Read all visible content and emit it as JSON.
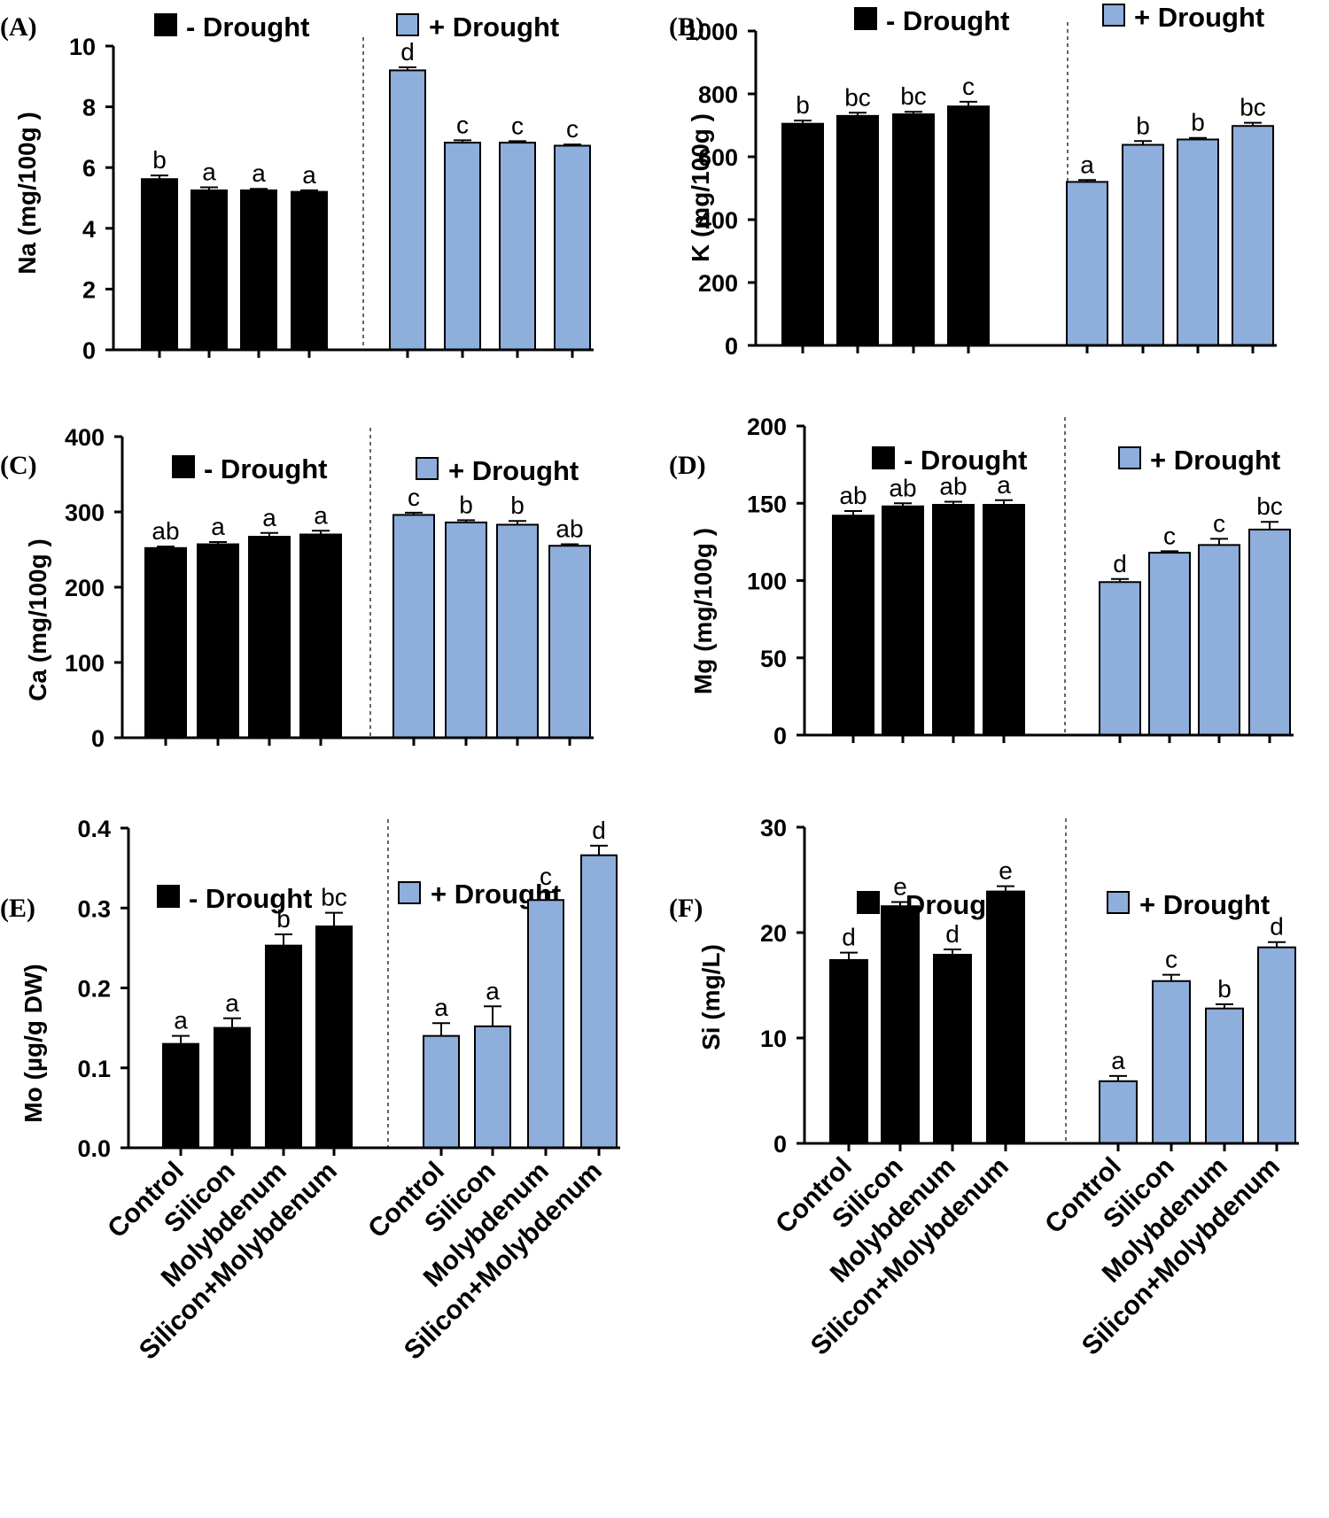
{
  "figure": {
    "colors": {
      "no_drought": "#000000",
      "drought": "#8eaedb",
      "outline": "#000000"
    },
    "categories": [
      "Control",
      "Silicon",
      "Molybdenum",
      "Silicon+Molybdenum"
    ],
    "legend": {
      "no_drought": "- Drought",
      "drought": "+ Drought"
    }
  },
  "chart_data": [
    {
      "panel": "(A)",
      "type": "bar",
      "ylabel": "Na (mg/100g )",
      "ylim": [
        0,
        10
      ],
      "yticks": [
        "0",
        "2",
        "4",
        "6",
        "8",
        "10"
      ],
      "categories": [
        "Control",
        "Silicon",
        "Molybdenum",
        "Silicon+Molybdenum"
      ],
      "series": [
        {
          "name": "- Drought",
          "values": [
            5.62,
            5.25,
            5.25,
            5.2
          ],
          "errors": [
            0.12,
            0.1,
            0.05,
            0.05
          ],
          "letters": [
            "b",
            "a",
            "a",
            "a"
          ]
        },
        {
          "name": "+ Drought",
          "values": [
            9.2,
            6.82,
            6.82,
            6.72
          ],
          "errors": [
            0.1,
            0.08,
            0.05,
            0.04
          ],
          "letters": [
            "d",
            "c",
            "c",
            "c"
          ]
        }
      ]
    },
    {
      "panel": "(B)",
      "type": "bar",
      "ylabel": "K (mg/100g )",
      "ylim": [
        0,
        1000
      ],
      "yticks": [
        "0",
        "200",
        "400",
        "600",
        "800",
        "1000"
      ],
      "categories": [
        "Control",
        "Silicon",
        "Molybdenum",
        "Silicon+Molybdenum"
      ],
      "series": [
        {
          "name": "- Drought",
          "values": [
            705,
            730,
            735,
            760
          ],
          "errors": [
            10,
            10,
            8,
            15
          ],
          "letters": [
            "b",
            "bc",
            "bc",
            "c"
          ]
        },
        {
          "name": "+ Drought",
          "values": [
            520,
            638,
            655,
            698
          ],
          "errors": [
            6,
            12,
            5,
            10
          ],
          "letters": [
            "a",
            "b",
            "b",
            "bc"
          ]
        }
      ]
    },
    {
      "panel": "(C)",
      "type": "bar",
      "ylabel": "Ca (mg/100g )",
      "ylim": [
        0,
        400
      ],
      "yticks": [
        "0",
        "100",
        "200",
        "300",
        "400"
      ],
      "categories": [
        "Control",
        "Silicon",
        "Molybdenum",
        "Silicon+Molybdenum"
      ],
      "series": [
        {
          "name": "- Drought",
          "values": [
            252,
            257,
            267,
            270
          ],
          "errors": [
            2,
            3,
            5,
            5
          ],
          "letters": [
            "ab",
            "a",
            "a",
            "a"
          ]
        },
        {
          "name": "+ Drought",
          "values": [
            296,
            286,
            283,
            255
          ],
          "errors": [
            3,
            3,
            5,
            2
          ],
          "letters": [
            "c",
            "b",
            "b",
            "ab"
          ]
        }
      ]
    },
    {
      "panel": "(D)",
      "type": "bar",
      "ylabel": "Mg (mg/100g )",
      "ylim": [
        0,
        200
      ],
      "yticks": [
        "0",
        "50",
        "100",
        "150",
        "200"
      ],
      "categories": [
        "Control",
        "Silicon",
        "Molybdenum",
        "Silicon+Molybdenum"
      ],
      "series": [
        {
          "name": "- Drought",
          "values": [
            142,
            148,
            149,
            149
          ],
          "errors": [
            3,
            2,
            2,
            3
          ],
          "letters": [
            "ab",
            "ab",
            "ab",
            "a"
          ]
        },
        {
          "name": "+ Drought",
          "values": [
            99,
            118,
            123,
            133
          ],
          "errors": [
            2,
            1,
            4,
            5
          ],
          "letters": [
            "d",
            "c",
            "c",
            "bc"
          ]
        }
      ]
    },
    {
      "panel": "(E)",
      "type": "bar",
      "ylabel": "Mo (µg/g DW)",
      "ylim": [
        0,
        0.4
      ],
      "yticks": [
        "0.0",
        "0.1",
        "0.2",
        "0.3",
        "0.4"
      ],
      "categories": [
        "Control",
        "Silicon",
        "Molybdenum",
        "Silicon+Molybdenum"
      ],
      "series": [
        {
          "name": "- Drought",
          "values": [
            0.13,
            0.15,
            0.253,
            0.277
          ],
          "errors": [
            0.01,
            0.012,
            0.014,
            0.017
          ],
          "letters": [
            "a",
            "a",
            "b",
            "bc"
          ]
        },
        {
          "name": "+ Drought",
          "values": [
            0.14,
            0.152,
            0.31,
            0.366
          ],
          "errors": [
            0.016,
            0.025,
            0.01,
            0.012
          ],
          "letters": [
            "a",
            "a",
            "c",
            "d"
          ]
        }
      ]
    },
    {
      "panel": "(F)",
      "type": "bar",
      "ylabel": "Si (mg/L)",
      "ylim": [
        0,
        30
      ],
      "yticks": [
        "0",
        "10",
        "20",
        "30"
      ],
      "categories": [
        "Control",
        "Silicon",
        "Molybdenum",
        "Silicon+Molybdenum"
      ],
      "series": [
        {
          "name": "- Drought",
          "values": [
            17.4,
            22.5,
            17.9,
            23.9
          ],
          "errors": [
            0.7,
            0.4,
            0.5,
            0.5
          ],
          "letters": [
            "d",
            "e",
            "d",
            "e"
          ]
        },
        {
          "name": "+ Drought",
          "values": [
            5.9,
            15.4,
            12.8,
            18.6
          ],
          "errors": [
            0.5,
            0.6,
            0.4,
            0.5
          ],
          "letters": [
            "a",
            "c",
            "b",
            "d"
          ]
        }
      ]
    }
  ]
}
